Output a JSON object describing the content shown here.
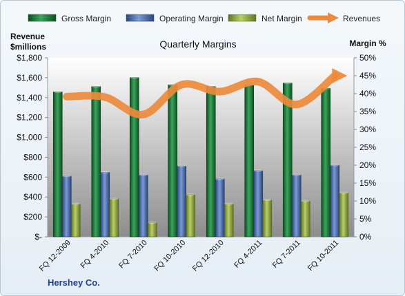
{
  "chart_data": {
    "type": "bar",
    "title": "Quarterly Margins",
    "company": "Hershey Co.",
    "ylabel_left": [
      "Revenue",
      "$millions"
    ],
    "ylabel_right": "Margin %",
    "categories": [
      "FQ 12-2009",
      "FQ 4-2010",
      "FQ 7-2010",
      "FQ 10-2010",
      "FQ 12-2010",
      "FQ 4-2011",
      "FQ 7-2011",
      "FQ 10-2011"
    ],
    "y_left": {
      "min": 0,
      "max": 1800,
      "ticks": [
        0,
        200,
        400,
        600,
        800,
        1000,
        1200,
        1400,
        1600,
        1800
      ],
      "tick_labels": [
        "$-",
        "$200",
        "$400",
        "$600",
        "$800",
        "$1,000",
        "$1,200",
        "$1,400",
        "$1,600",
        "$1,800"
      ]
    },
    "y_right": {
      "min": 0,
      "max": 50,
      "ticks": [
        0,
        5,
        10,
        15,
        20,
        25,
        30,
        35,
        40,
        45,
        50
      ],
      "tick_labels": [
        "0%",
        "5%",
        "10%",
        "15%",
        "20%",
        "25%",
        "30%",
        "35%",
        "40%",
        "45%",
        "50%"
      ]
    },
    "series": [
      {
        "name": "Gross Margin",
        "kind": "bar",
        "axis": "right",
        "color": "#1f7a3a",
        "values": [
          40.5,
          42.0,
          44.5,
          42.5,
          42.0,
          42.5,
          43.0,
          41.5
        ]
      },
      {
        "name": "Operating Margin",
        "kind": "bar",
        "axis": "right",
        "color": "#4a6fb5",
        "values": [
          17.0,
          18.0,
          17.3,
          19.8,
          16.2,
          18.5,
          17.3,
          20.0
        ]
      },
      {
        "name": "Net Margin",
        "kind": "bar",
        "axis": "right",
        "color": "#8faa3c",
        "values": [
          9.2,
          10.6,
          4.0,
          11.8,
          9.2,
          10.3,
          10.0,
          12.3
        ]
      },
      {
        "name": "Revenues",
        "kind": "line",
        "axis": "left",
        "color": "#ed8a3b",
        "values": [
          1410,
          1405,
          1230,
          1530,
          1460,
          1560,
          1330,
          1620
        ]
      }
    ],
    "legend_position": "top",
    "grid": false,
    "plot_background": "gradient-gray"
  }
}
